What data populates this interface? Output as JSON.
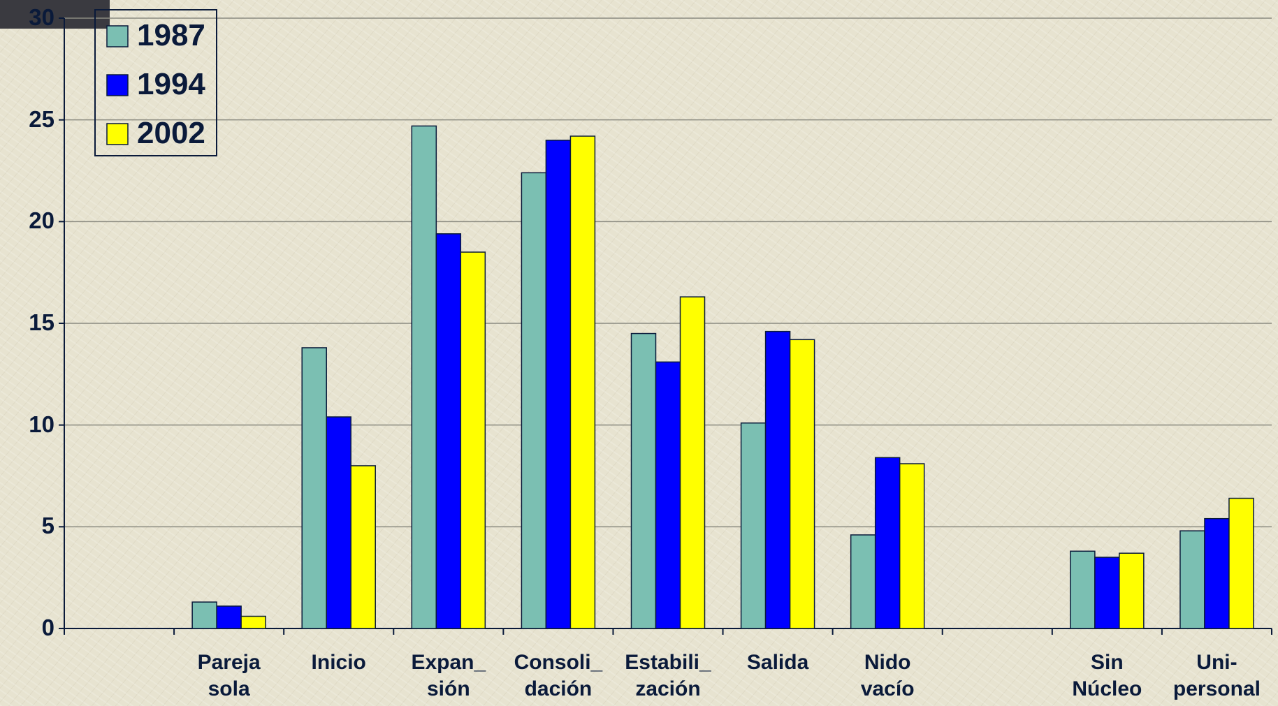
{
  "chart_data": {
    "type": "bar",
    "categories": [
      null,
      "Pareja\nsola",
      "Inicio",
      "Expan_\nsión",
      "Consoli_\ndación",
      "Estabili_\nzación",
      "Salida",
      "Nido\nvacío",
      null,
      "Sin\nNúcleo",
      "Uni-\npersonal"
    ],
    "series": [
      {
        "name": "1987",
        "color": "#7bbfb2",
        "values": [
          null,
          1.3,
          13.8,
          24.7,
          22.4,
          14.5,
          10.1,
          4.6,
          null,
          3.8,
          4.8
        ]
      },
      {
        "name": "1994",
        "color": "#0000ff",
        "values": [
          null,
          1.1,
          10.4,
          19.4,
          24.0,
          13.1,
          14.6,
          8.4,
          null,
          3.5,
          5.4
        ]
      },
      {
        "name": "2002",
        "color": "#ffff00",
        "values": [
          null,
          0.6,
          8.0,
          18.5,
          24.2,
          16.3,
          14.2,
          8.1,
          null,
          3.7,
          6.4
        ]
      }
    ],
    "ylim": [
      0,
      30
    ],
    "yticks": [
      0,
      5,
      10,
      15,
      20,
      25,
      30
    ],
    "grid": true,
    "legend": "top-left"
  }
}
